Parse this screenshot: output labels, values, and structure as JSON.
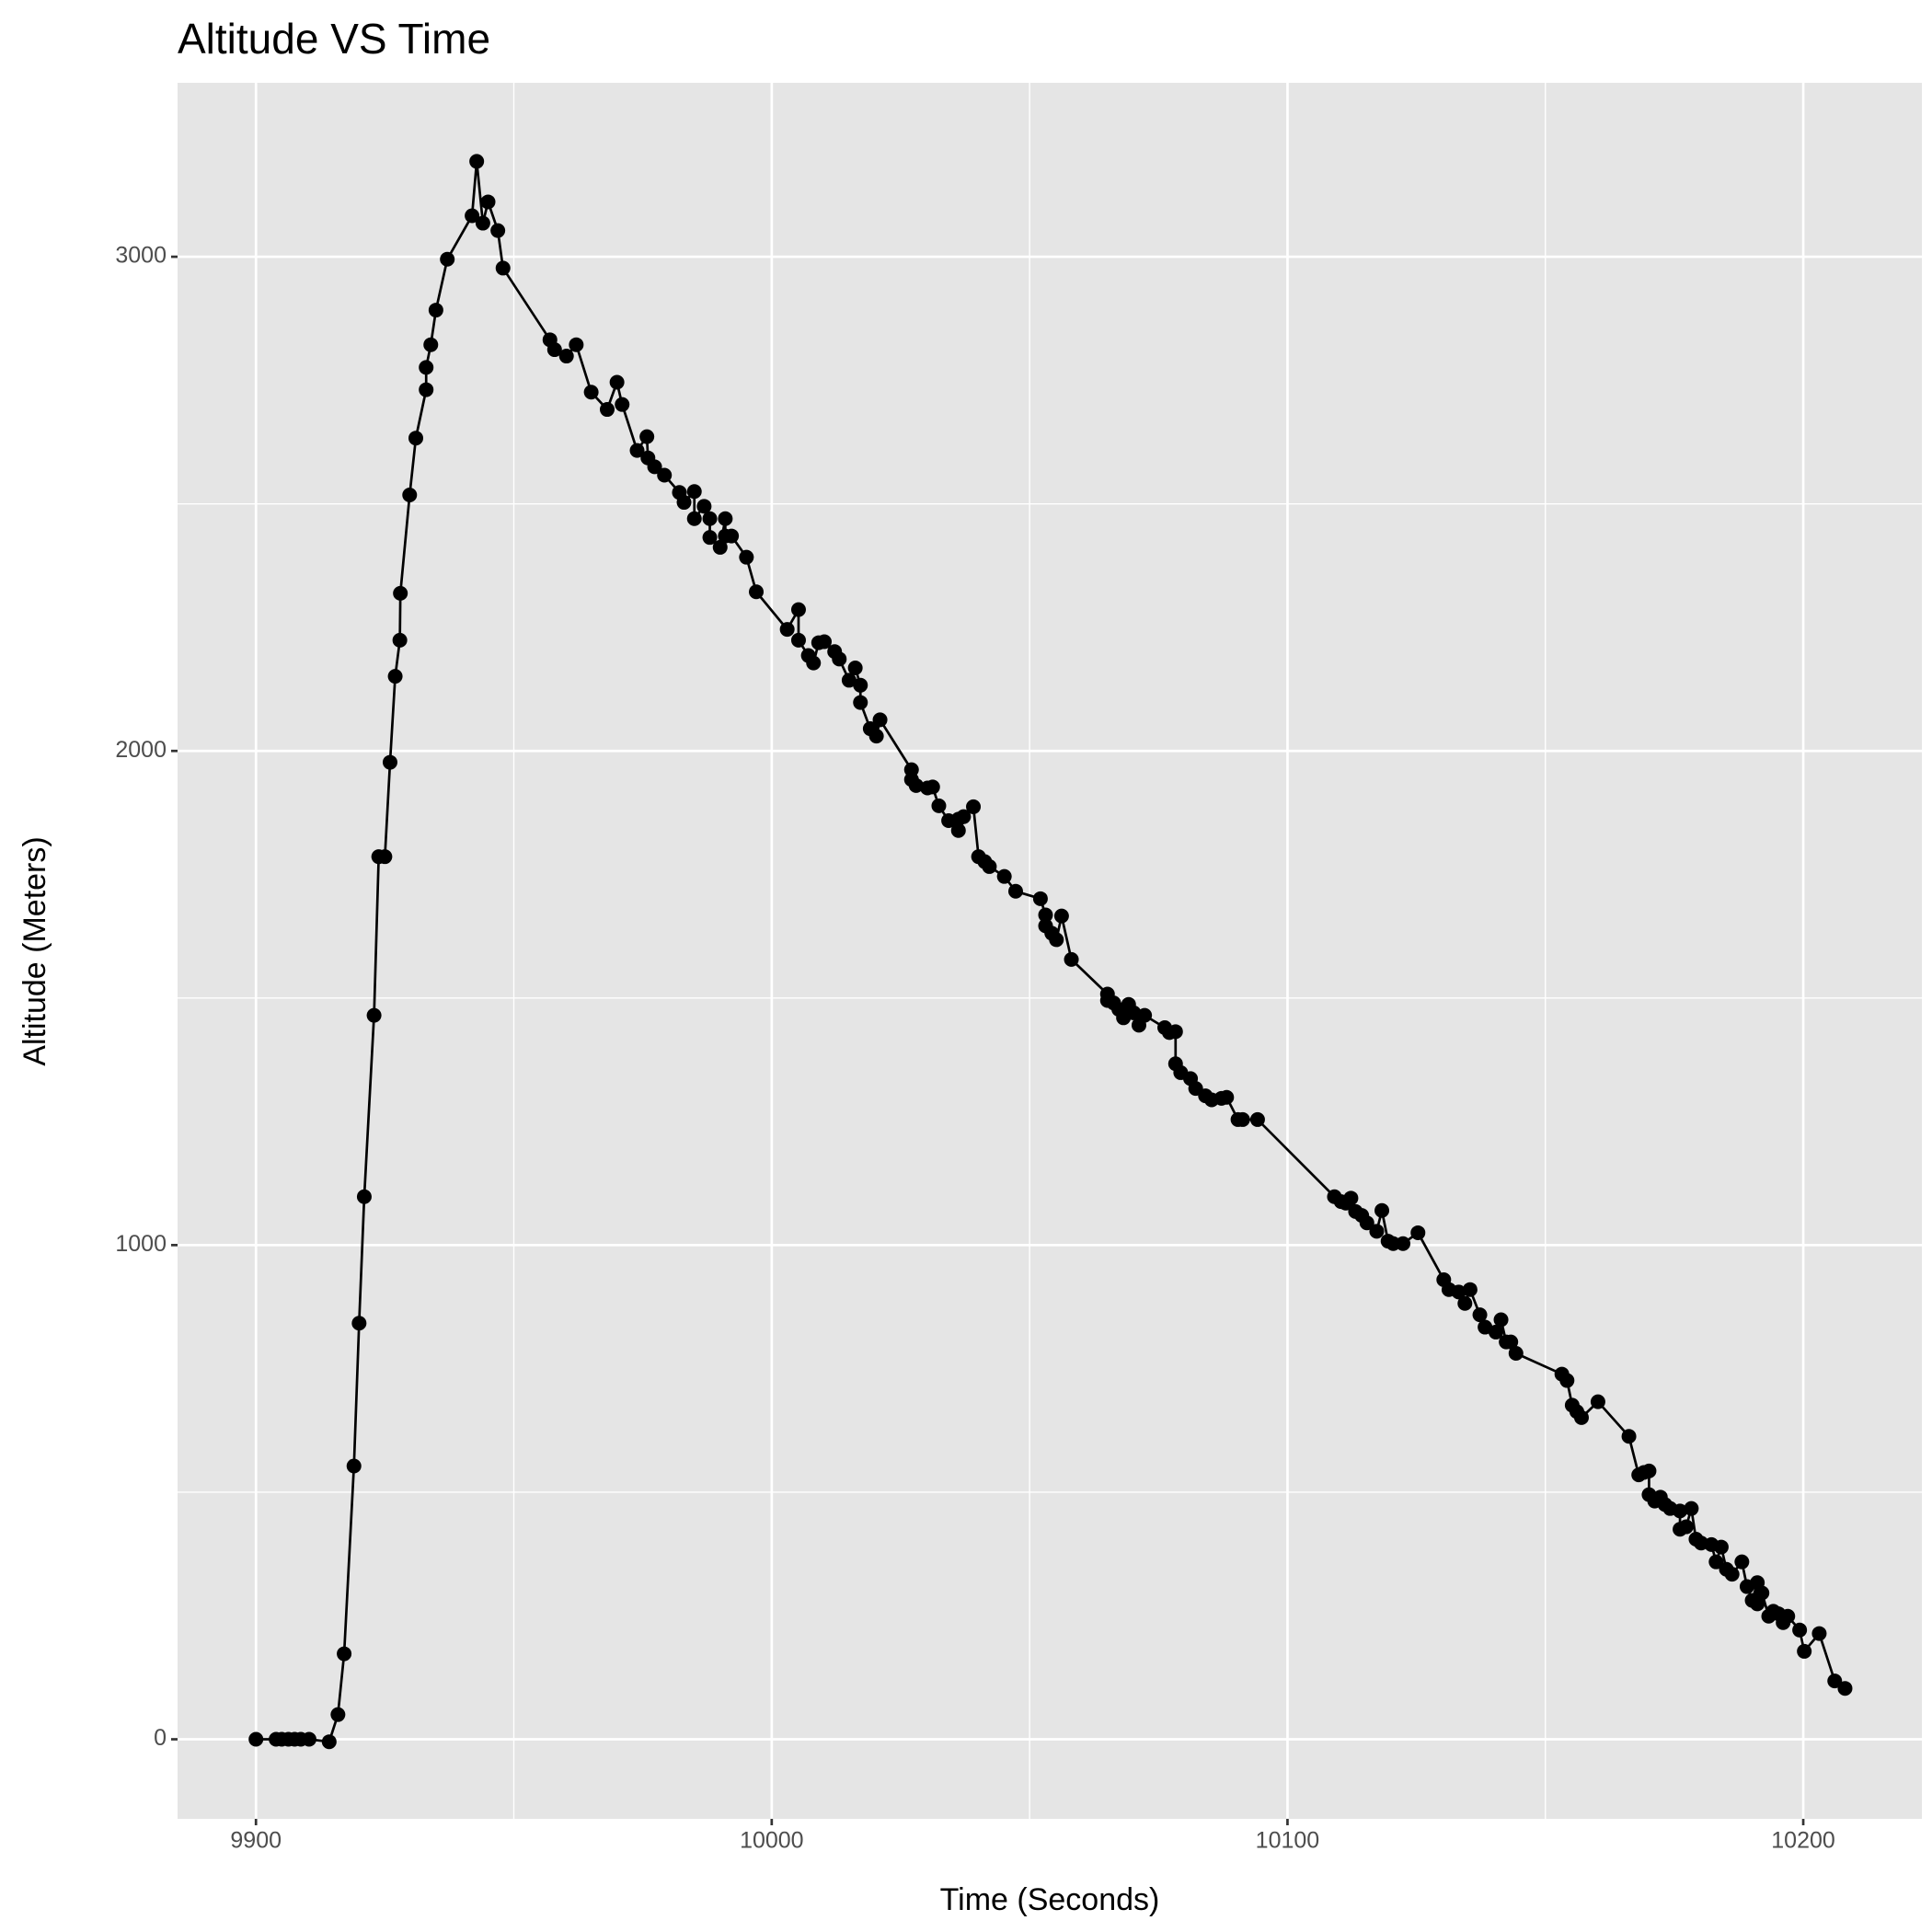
{
  "chart_data": {
    "type": "line",
    "title": "Altitude VS Time",
    "x_label": "Time (Seconds)",
    "y_label": "Altitude (Meters)",
    "color": "#000000",
    "markers": true,
    "grid": true,
    "background": "#e5e5e5",
    "xlim": [
      9884.8,
      10223
    ],
    "ylim": [
      -161,
      3352
    ],
    "xticks": [
      9900,
      10000,
      10100,
      10200
    ],
    "yticks": [
      0,
      1000,
      2000,
      3000
    ],
    "minor_xticks": [
      9950,
      10050,
      10150
    ],
    "minor_yticks": [
      500,
      1500,
      2500
    ],
    "x": [
      9900,
      9903.9,
      9905,
      9906.3,
      9907.5,
      9908.7,
      9910.3,
      9914.2,
      9915.9,
      9917.1,
      9919,
      9920,
      9921,
      9922.9,
      9923.8,
      9925,
      9926,
      9927,
      9927.9,
      9928,
      9929.8,
      9931,
      9933,
      9933,
      9933.9,
      9934.9,
      9937.1,
      9941.9,
      9942.8,
      9944,
      9945,
      9946.9,
      9947.9,
      9957,
      9957.9,
      9960.2,
      9962.1,
      9965,
      9968.1,
      9970,
      9971,
      9973.9,
      9975.8,
      9976,
      9977.3,
      9979.2,
      9982.1,
      9983,
      9985,
      9985,
      9986.9,
      9988,
      9988,
      9990,
      9991,
      9991,
      9992.2,
      9995.1,
      9997,
      10003,
      10005.2,
      10005.2,
      10007.1,
      10008.1,
      10009.1,
      10010.2,
      10012.2,
      10013.1,
      10015,
      10016.2,
      10017.2,
      10017.2,
      10019.1,
      10020.3,
      10021,
      10027.1,
      10027.1,
      10028,
      10030.2,
      10031.2,
      10032.4,
      10034.3,
      10036.2,
      10036.2,
      10037.2,
      10039.1,
      10040.1,
      10041.3,
      10042.2,
      10045.1,
      10047.3,
      10052.1,
      10053.1,
      10053.1,
      10054.3,
      10055.2,
      10056.2,
      10058.1,
      10065.1,
      10065.1,
      10066.3,
      10067.3,
      10068.2,
      10069.2,
      10070.2,
      10071.2,
      10072.3,
      10076.2,
      10077.1,
      10078.3,
      10078.3,
      10079.3,
      10081.2,
      10082.2,
      10084.1,
      10085.3,
      10087.2,
      10088.2,
      10090.4,
      10091.3,
      10094.2,
      10109.1,
      10110.4,
      10111.3,
      10112.3,
      10113.2,
      10114.4,
      10115.4,
      10117.3,
      10118.3,
      10119.5,
      10120.5,
      10122.4,
      10125.3,
      10130.3,
      10131.3,
      10133.2,
      10134.4,
      10135.4,
      10137.3,
      10138.3,
      10140.4,
      10141.4,
      10142.4,
      10143.3,
      10144.3,
      10153.2,
      10154.2,
      10155.2,
      10156.1,
      10157,
      10160.2,
      10166.2,
      10168.1,
      10169.1,
      10170.1,
      10170.1,
      10171.2,
      10172.3,
      10173.2,
      10174.2,
      10176.1,
      10176.1,
      10177.3,
      10178.3,
      10179.2,
      10180.2,
      10182.2,
      10183.1,
      10184.1,
      10185.1,
      10186.2,
      10188.1,
      10189.1,
      10190.1,
      10191.1,
      10191.1,
      10192,
      10193.3,
      10194.2,
      10195.2,
      10196.1,
      10197,
      10199.3,
      10200.2,
      10203.1,
      10206.1,
      10208.1
    ],
    "values": [
      0,
      0,
      0,
      0,
      0,
      0,
      0,
      -5,
      50,
      173,
      553,
      842,
      1098,
      1465,
      1786,
      1786,
      1977,
      2151,
      2224,
      2319,
      2518,
      2633,
      2731,
      2776,
      2822,
      2892,
      2995,
      3083,
      3193,
      3068,
      3111,
      3053,
      2977,
      2832,
      2812,
      2799,
      2822,
      2726,
      2691,
      2746,
      2701,
      2608,
      2636,
      2593,
      2575,
      2558,
      2523,
      2503,
      2525,
      2470,
      2495,
      2470,
      2432,
      2412,
      2470,
      2435,
      2435,
      2392,
      2322,
      2246,
      2286,
      2224,
      2193,
      2178,
      2219,
      2221,
      2201,
      2186,
      2143,
      2168,
      2133,
      2098,
      2045,
      2030,
      2063,
      1962,
      1942,
      1930,
      1925,
      1927,
      1889,
      1859,
      1862,
      1839,
      1867,
      1887,
      1786,
      1776,
      1766,
      1746,
      1716,
      1701,
      1668,
      1646,
      1631,
      1618,
      1666,
      1578,
      1508,
      1495,
      1490,
      1477,
      1460,
      1487,
      1470,
      1445,
      1465,
      1440,
      1430,
      1432,
      1367,
      1349,
      1337,
      1317,
      1302,
      1294,
      1297,
      1299,
      1254,
      1254,
      1254,
      1098,
      1088,
      1085,
      1095,
      1068,
      1060,
      1045,
      1028,
      1070,
      1008,
      1003,
      1003,
      1025,
      930,
      910,
      905,
      882,
      910,
      859,
      834,
      824,
      849,
      804,
      804,
      781,
      739,
      726,
      676,
      663,
      651,
      683,
      613,
      535,
      540,
      543,
      495,
      482,
      490,
      475,
      467,
      462,
      425,
      430,
      467,
      405,
      397,
      394,
      359,
      389,
      344,
      334,
      359,
      309,
      281,
      317,
      274,
      296,
      249,
      259,
      254,
      236,
      249,
      221,
      178,
      214,
      118,
      103
    ]
  }
}
